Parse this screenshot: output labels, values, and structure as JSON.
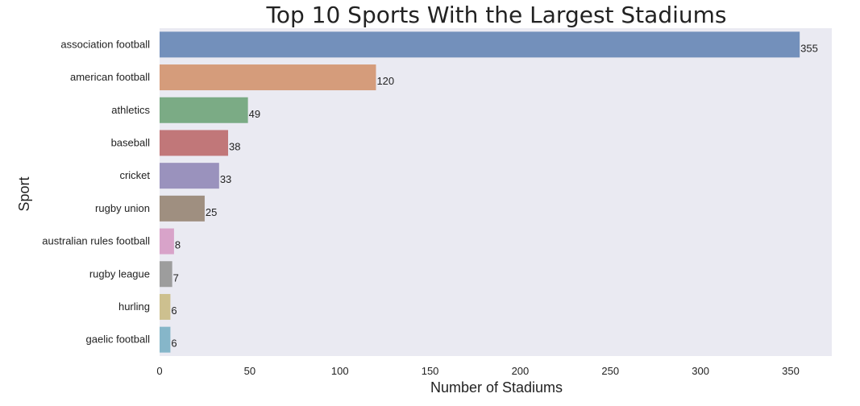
{
  "chart_data": {
    "type": "bar",
    "orientation": "horizontal",
    "title": "Top 10 Sports With the Largest Stadiums",
    "xlabel": "Number of Stadiums",
    "ylabel": "Sport",
    "categories": [
      "association football",
      "american football",
      "athletics",
      "baseball",
      "cricket",
      "rugby union",
      "australian rules football",
      "rugby league",
      "hurling",
      "gaelic football"
    ],
    "values": [
      355,
      120,
      49,
      38,
      33,
      25,
      8,
      7,
      6,
      6
    ],
    "data_labels": [
      "355",
      "120",
      "49",
      "38",
      "33",
      "25",
      "8",
      "7",
      "6",
      "6"
    ],
    "x_ticks": [
      "0",
      "50",
      "100",
      "150",
      "200",
      "250",
      "300",
      "350"
    ],
    "xlim": [
      0,
      372
    ],
    "grid": false,
    "legend": "none",
    "colors": {
      "plot_background": "#eaeaf2",
      "bars": [
        "#7390bb",
        "#d59c7b",
        "#7bab85",
        "#c17779",
        "#9a92bd",
        "#9f8f80",
        "#d8a3c9",
        "#9d9d9d",
        "#cdc08f",
        "#86b6c9"
      ]
    }
  }
}
